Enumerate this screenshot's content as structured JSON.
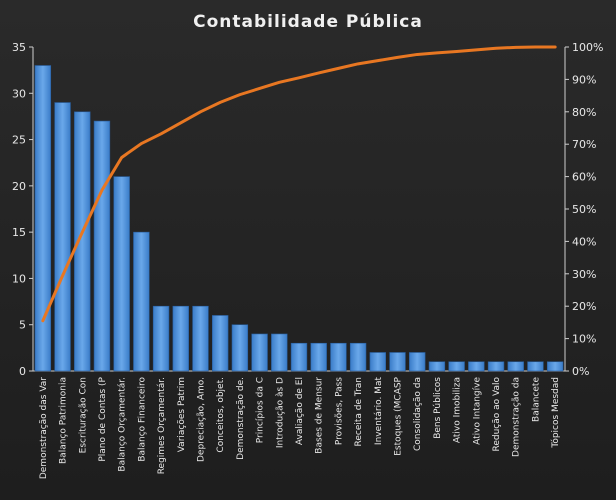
{
  "chart_data": {
    "type": "bar",
    "title": "Contabilidade  Pública",
    "categories": [
      "Demonstração das Var",
      "Balanço Patrimonia",
      "Escrituração Con",
      "Plano de Contas (P",
      "Balanço Orçamentár.",
      "Balanço Financeiro",
      "Regimes Orçamentár.",
      "Variações Patrim",
      "Depreciação, Amo.",
      "Conceitos, objet.",
      "Demonstração de.",
      "Princípios da C",
      "Introdução às D",
      "Avaliação de El",
      "Bases de Mensur",
      "Provisões, Pass",
      "Receita de Tran",
      "Inventário. Mat",
      "Estoques (MCASP",
      "Consolidação da",
      "Bens Públicos",
      "Ativo Imobiliza",
      "Ativo Intangíve",
      "Redução ao Valo",
      "Demonstração da",
      "Balancete",
      "Tópicos Mesdad"
    ],
    "series": [
      {
        "type": "bar",
        "axis": "left",
        "values": [
          33,
          29,
          28,
          27,
          21,
          15,
          7,
          7,
          7,
          6,
          5,
          4,
          4,
          3,
          3,
          3,
          3,
          2,
          2,
          2,
          1,
          1,
          1,
          1,
          1,
          1,
          1
        ],
        "color": "#4e8fd8"
      },
      {
        "type": "line",
        "axis": "right",
        "values": [
          15.5,
          29.4,
          42.8,
          55.8,
          65.9,
          70.2,
          73.2,
          76.6,
          80.0,
          82.9,
          85.3,
          87.2,
          89.1,
          90.5,
          92.0,
          93.4,
          94.8,
          95.8,
          96.8,
          97.7,
          98.2,
          98.6,
          99.1,
          99.6,
          99.9,
          100.0,
          100.0
        ],
        "color": "#e87722"
      }
    ],
    "y_left": {
      "min": 0,
      "max": 35,
      "ticks": [
        "0",
        "5",
        "10",
        "15",
        "20",
        "25",
        "30",
        "35"
      ]
    },
    "y_right": {
      "min": 0,
      "max": 100,
      "ticks": [
        "0%",
        "10%",
        "20%",
        "30%",
        "40%",
        "50%",
        "60%",
        "70%",
        "80%",
        "90%",
        "100%"
      ]
    },
    "grid": false,
    "legend": "none"
  }
}
